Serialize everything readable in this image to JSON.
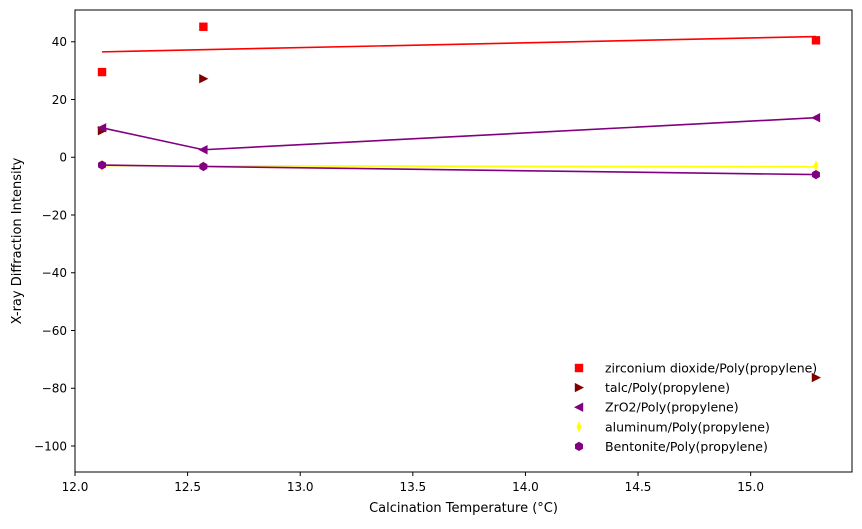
{
  "chart_data": {
    "type": "scatter",
    "title": "",
    "xlabel": "Calcination Temperature (°C)",
    "ylabel": "X-ray Diffraction Intensity",
    "xlim": [
      12.0,
      15.45
    ],
    "ylim": [
      -109,
      51
    ],
    "xticks": [
      12.0,
      12.5,
      13.0,
      13.5,
      14.0,
      14.5,
      15.0
    ],
    "yticks": [
      40,
      20,
      0,
      -20,
      -40,
      -60,
      -80,
      -100
    ],
    "x_tick_labels": [
      "12.0",
      "12.5",
      "13.0",
      "13.5",
      "14.0",
      "14.5",
      "15.0"
    ],
    "y_tick_labels": [
      "40",
      "20",
      "0",
      "−20",
      "−40",
      "−60",
      "−80",
      "−100"
    ],
    "grid": false,
    "legend_position": "lower-right",
    "series": [
      {
        "name": "zirconium dioxide/Poly(propylene)",
        "color": "#ff0000",
        "marker": "square",
        "x": [
          12.12,
          12.57,
          15.29
        ],
        "y": [
          29.5,
          45.2,
          40.5
        ],
        "fit_line": {
          "color": "#ff0000",
          "x": [
            12.12,
            15.29
          ],
          "y": [
            36.5,
            41.8
          ]
        }
      },
      {
        "name": "talc/Poly(propylene)",
        "color": "#800000",
        "marker": "triangle-right",
        "x": [
          12.12,
          12.57,
          15.29
        ],
        "y": [
          9.2,
          27.2,
          -76.3
        ]
      },
      {
        "name": "ZrO2/Poly(propylene)",
        "color": "#800080",
        "marker": "triangle-left",
        "x": [
          12.12,
          12.57,
          15.29
        ],
        "y": [
          10.2,
          2.6,
          13.7
        ],
        "fit_line": {
          "color": "#800080",
          "x": [
            12.12,
            12.57,
            15.29
          ],
          "y": [
            10.2,
            2.6,
            13.7
          ]
        }
      },
      {
        "name": "aluminum/Poly(propylene)",
        "color": "#ffff00",
        "marker": "thin-diamond",
        "x": [
          12.12,
          12.57,
          15.29
        ],
        "y": [
          -3.0,
          -3.1,
          -3.0
        ],
        "fit_line": {
          "color": "#ffff00",
          "x": [
            12.12,
            15.29
          ],
          "y": [
            -2.9,
            -3.3
          ]
        }
      },
      {
        "name": "Bentonite/Poly(propylene)",
        "color": "#800080",
        "marker": "hexagon",
        "x": [
          12.12,
          12.57,
          15.29
        ],
        "y": [
          -2.7,
          -3.2,
          -6.0
        ],
        "fit_line": {
          "color": "#800080",
          "x": [
            12.12,
            12.57,
            15.29
          ],
          "y": [
            -2.7,
            -3.2,
            -6.0
          ]
        }
      }
    ]
  }
}
